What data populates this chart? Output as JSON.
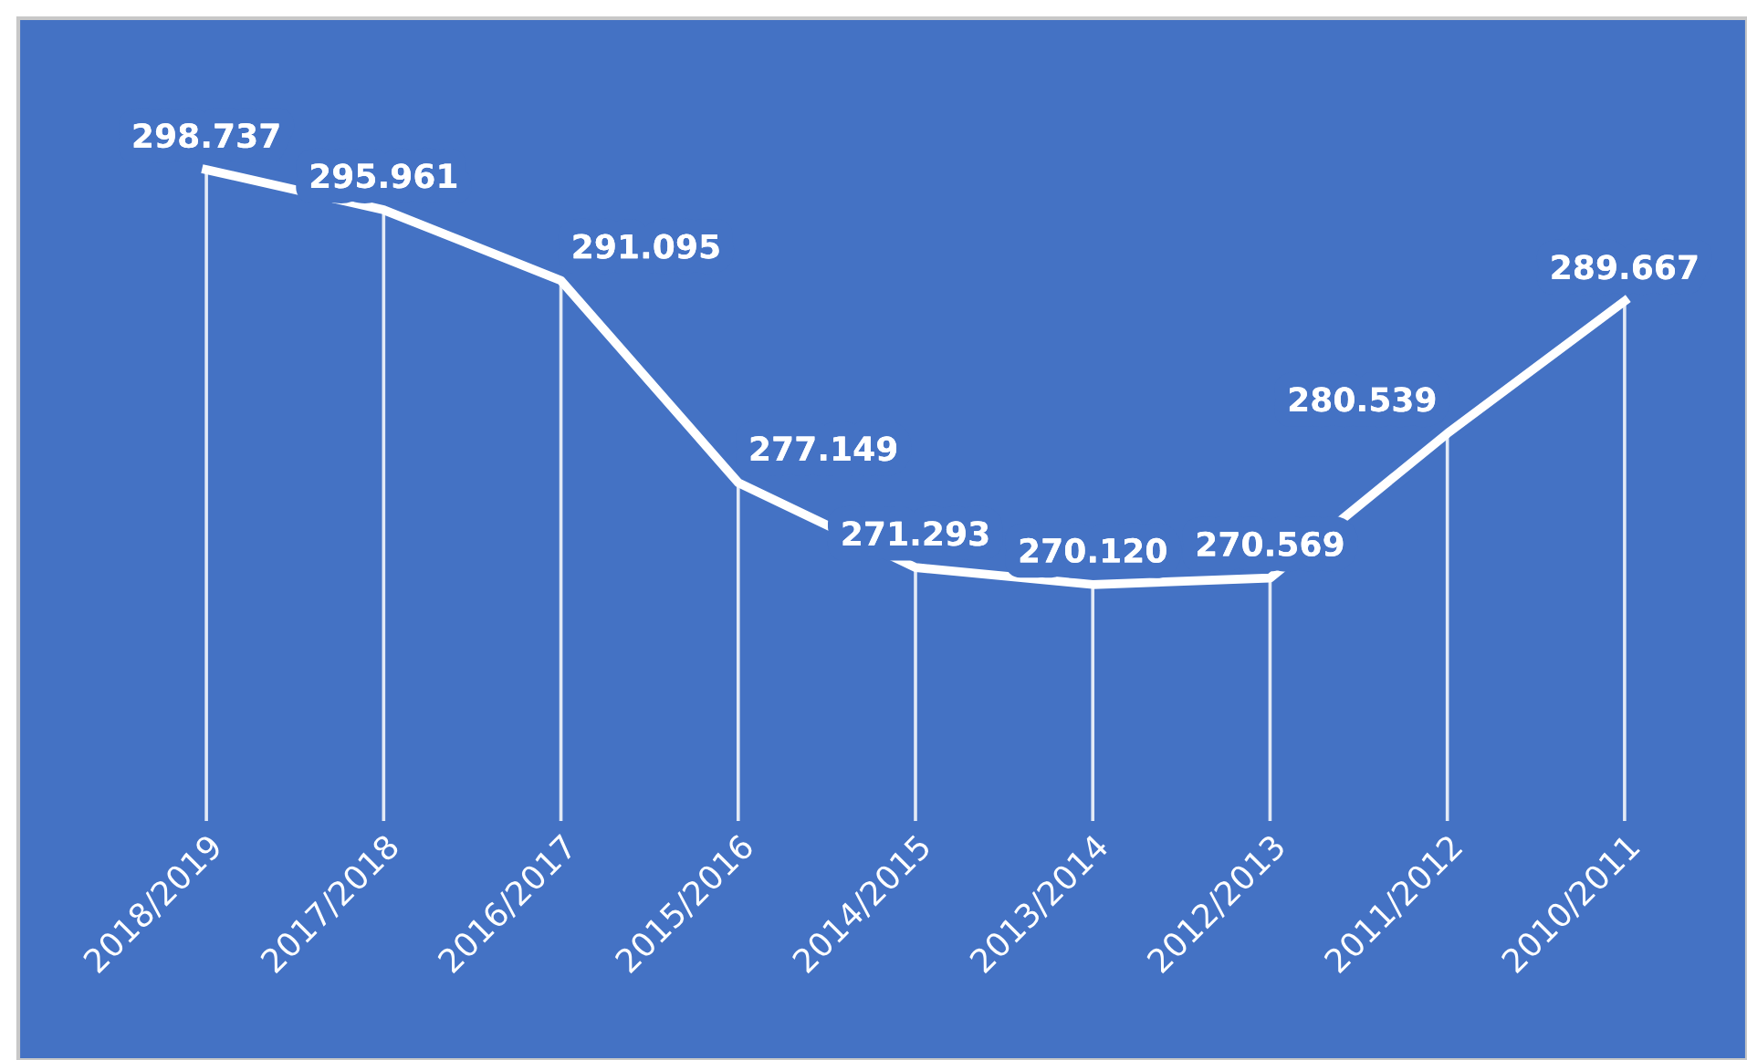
{
  "chart_data": {
    "type": "line",
    "categories": [
      "2018/2019",
      "2017/2018",
      "2016/2017",
      "2015/2016",
      "2014/2015",
      "2013/2014",
      "2012/2013",
      "2011/2012",
      "2010/2011"
    ],
    "values": [
      298.737,
      295.961,
      291.095,
      277.149,
      271.293,
      270.12,
      270.569,
      280.539,
      289.667
    ],
    "value_labels": [
      "298.737",
      "295.961",
      "291.095",
      "277.149",
      "271.293",
      "270.120",
      "270.569",
      "280.539",
      "289.667"
    ],
    "color": "#ffffff",
    "line_style": "solid",
    "grid": "x",
    "legend": false
  }
}
